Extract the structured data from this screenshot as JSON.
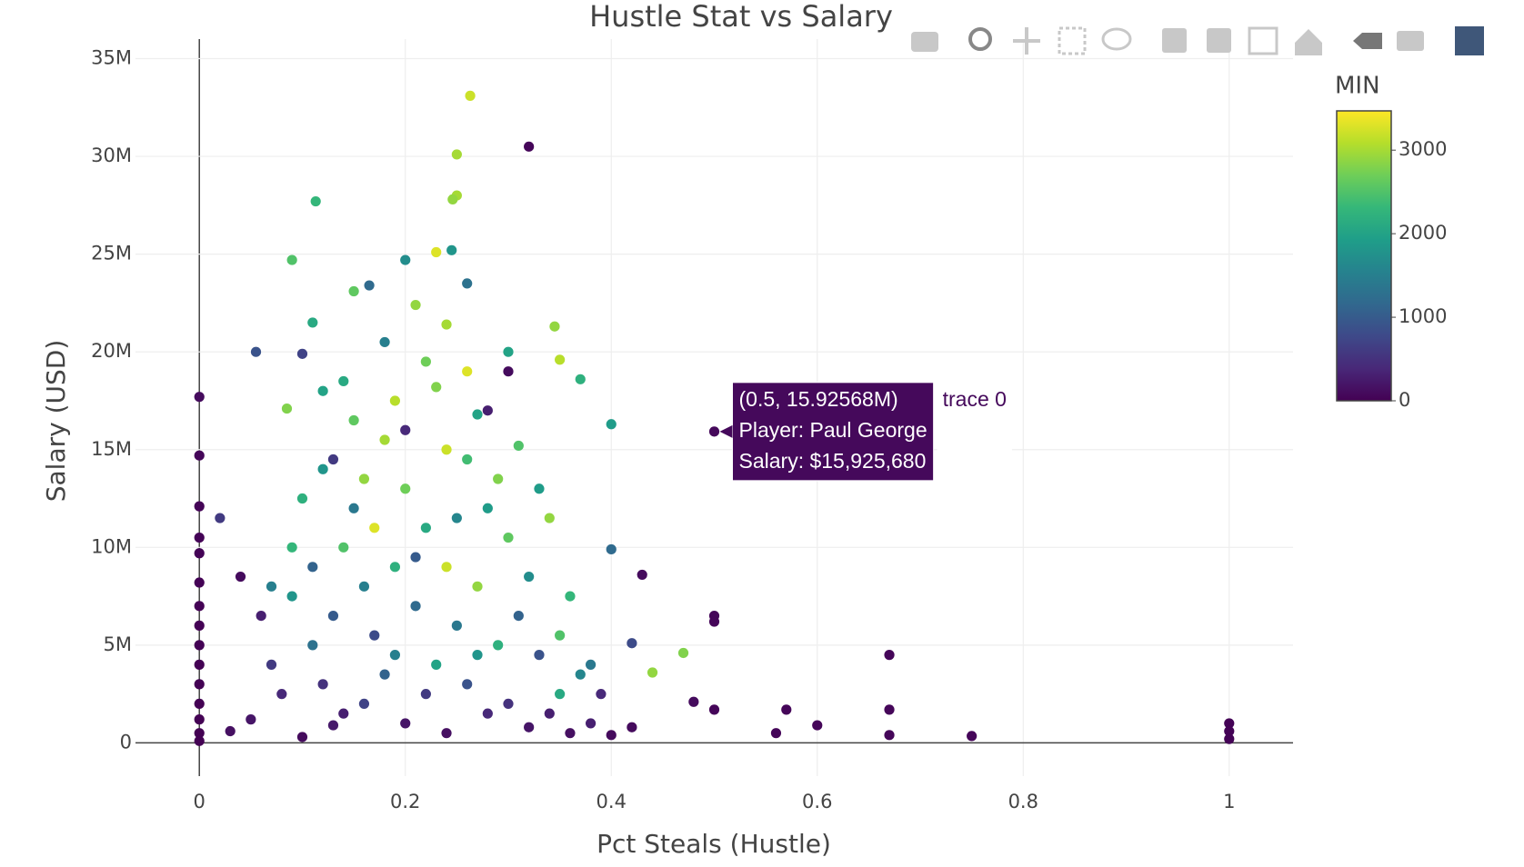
{
  "chart_data": {
    "type": "scatter",
    "title": "Hustle Stat vs Salary",
    "x_label": "Pct Steals (Hustle)",
    "y_label": "Salary (USD)",
    "xlim": [
      -0.062,
      1.062
    ],
    "xticks": [
      0,
      0.2,
      0.4,
      0.6,
      0.8,
      1
    ],
    "ylim": [
      -1700000,
      36000000
    ],
    "yticks": [
      0,
      {
        "value": 5000000,
        "label": "5M"
      },
      {
        "value": 10000000,
        "label": "10M"
      },
      {
        "value": 15000000,
        "label": "15M"
      },
      {
        "value": 20000000,
        "label": "20M"
      },
      {
        "value": 25000000,
        "label": "25M"
      },
      {
        "value": 30000000,
        "label": "30M"
      },
      {
        "value": 35000000,
        "label": "35M"
      }
    ],
    "grid": true,
    "colorscale": [
      "#440154",
      "#482878",
      "#3e4989",
      "#31688e",
      "#26828e",
      "#1f9e89",
      "#35b779",
      "#6ece58",
      "#b5de2b",
      "#fde725"
    ],
    "colorbar": {
      "title": "MIN",
      "lim": [
        0,
        3470
      ],
      "ticks": [
        0,
        1000,
        2000,
        3000
      ]
    },
    "hover": {
      "lines": [
        "(0.5, 15.92568M)",
        "Player: Paul George",
        "Salary: $15,925,680"
      ]
    },
    "series": [
      {
        "name": "trace 0",
        "x": [
          0.5,
          0,
          0,
          0,
          0,
          0,
          0,
          0,
          0,
          0,
          0,
          0,
          0,
          0,
          0,
          0,
          0.32,
          0.263,
          0.25,
          0.113,
          0.25,
          0.246,
          0.09,
          0.2,
          0.26,
          0.055,
          0.02,
          0.04,
          0.4,
          0.43,
          0.4,
          0.5,
          0.5,
          0.47,
          0.44,
          0.67,
          0.5,
          0.57,
          0.6,
          0.67,
          0.67,
          0.75,
          1,
          1,
          1,
          0.56,
          0.48,
          0.42,
          0.345,
          0.35,
          0.37,
          0.3,
          0.24,
          0.15,
          0.165,
          0.1,
          0.11,
          0.085,
          0.21,
          0.23,
          0.245,
          0.1,
          0.12,
          0.14,
          0.16,
          0.18,
          0.2,
          0.22,
          0.24,
          0.26,
          0.28,
          0.3,
          0.32,
          0.34,
          0.36,
          0.15,
          0.19,
          0.23,
          0.27,
          0.31,
          0.13,
          0.17,
          0.21,
          0.25,
          0.29,
          0.33,
          0.37,
          0.09,
          0.11,
          0.07,
          0.06,
          0.08,
          0.12,
          0.14,
          0.16,
          0.18,
          0.2,
          0.22,
          0.24,
          0.26,
          0.28,
          0.3,
          0.32,
          0.34,
          0.36,
          0.38,
          0.4,
          0.42,
          0.05,
          0.03,
          0.1,
          0.13,
          0.19,
          0.23,
          0.27,
          0.31,
          0.35,
          0.15,
          0.17,
          0.21,
          0.25,
          0.29,
          0.33,
          0.11,
          0.09,
          0.07,
          0.13,
          0.2,
          0.26,
          0.22,
          0.18,
          0.14,
          0.28,
          0.3,
          0.12,
          0.16,
          0.24,
          0.19,
          0.27,
          0.35,
          0.38,
          0.39
        ],
        "values": [
          15925680,
          17700000,
          14700000,
          12100000,
          10500000,
          9700000,
          8200000,
          7000000,
          6000000,
          5000000,
          4000000,
          3000000,
          2000000,
          1200000,
          500000,
          100000,
          30500000,
          33100000,
          30100000,
          27700000,
          28000000,
          27800000,
          24700000,
          24700000,
          23500000,
          20000000,
          11500000,
          8500000,
          9900000,
          8600000,
          16300000,
          6500000,
          6200000,
          4600000,
          3600000,
          4500000,
          1700000,
          1700000,
          900000,
          1700000,
          400000,
          350000,
          1000000,
          600000,
          200000,
          500000,
          2100000,
          5100000,
          21300000,
          19600000,
          18600000,
          20000000,
          21400000,
          23100000,
          23400000,
          19900000,
          21500000,
          17100000,
          22400000,
          25100000,
          25200000,
          12500000,
          14000000,
          10000000,
          8000000,
          15500000,
          13000000,
          11000000,
          9000000,
          14500000,
          12000000,
          10500000,
          8500000,
          11500000,
          7500000,
          16500000,
          17500000,
          18200000,
          16800000,
          15200000,
          6500000,
          5500000,
          7000000,
          6000000,
          5000000,
          4500000,
          3500000,
          7500000,
          5000000,
          4000000,
          6500000,
          2500000,
          3000000,
          1500000,
          2000000,
          3500000,
          1000000,
          2500000,
          500000,
          3000000,
          1500000,
          2000000,
          800000,
          1500000,
          500000,
          1000000,
          400000,
          800000,
          1200000,
          600000,
          300000,
          900000,
          4500000,
          4000000,
          8000000,
          6500000,
          5500000,
          12000000,
          11000000,
          9500000,
          11500000,
          13500000,
          13000000,
          9000000,
          10000000,
          8000000,
          14500000,
          16000000,
          19000000,
          19500000,
          20500000,
          18500000,
          17000000,
          19000000,
          18000000,
          13500000,
          15000000,
          9000000,
          4500000,
          2500000,
          4000000,
          2500000
        ],
        "color_values": [
          80,
          100,
          50,
          30,
          20,
          20,
          10,
          10,
          10,
          10,
          5,
          5,
          5,
          5,
          5,
          5,
          50,
          3200,
          3000,
          2300,
          3000,
          2900,
          2500,
          1700,
          1300,
          900,
          600,
          100,
          1200,
          100,
          1900,
          50,
          50,
          2800,
          2900,
          50,
          50,
          50,
          50,
          50,
          50,
          50,
          20,
          20,
          20,
          50,
          100,
          800,
          2900,
          3100,
          2200,
          2000,
          3000,
          2600,
          1200,
          700,
          2100,
          2800,
          2900,
          3300,
          1800,
          2200,
          1800,
          2500,
          1500,
          3000,
          2700,
          2100,
          3200,
          2400,
          1900,
          2600,
          1700,
          2900,
          2300,
          2600,
          3100,
          2800,
          2000,
          2500,
          1000,
          800,
          1200,
          1400,
          2200,
          900,
          1600,
          1800,
          1300,
          600,
          300,
          400,
          500,
          300,
          700,
          1100,
          200,
          600,
          150,
          900,
          400,
          500,
          200,
          300,
          150,
          300,
          100,
          100,
          200,
          150,
          100,
          250,
          1500,
          2000,
          2900,
          1100,
          2500,
          1400,
          3300,
          1000,
          1600,
          2800,
          1900,
          1100,
          2300,
          1500,
          600,
          400,
          3300,
          2700,
          1500,
          2100,
          300,
          100,
          2000,
          2900,
          3200,
          2200,
          1800,
          2100,
          1400,
          400
        ]
      }
    ]
  }
}
